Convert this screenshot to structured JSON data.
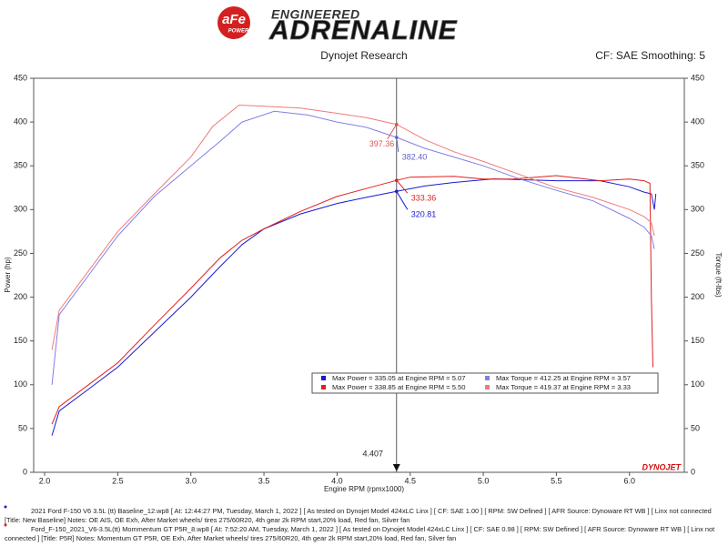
{
  "header": {
    "brand": "aFe",
    "brand_sub": "POWER",
    "tagline": "ENGINEERED",
    "title": "ADRENALINE"
  },
  "chart_data": {
    "type": "line",
    "title": "Dynojet Research",
    "subtitle": "CF: SAE Smoothing: 5",
    "x_label": "Engine RPM (rpmx1000)",
    "y_label": "Power (hp)",
    "y2_label": "Torque (ft-lbs)",
    "watermark": "DYNOJET",
    "xlim": [
      1.925,
      6.375
    ],
    "ylim": [
      0,
      450
    ],
    "y2lim": [
      0,
      450
    ],
    "xticks": [
      {
        "value": 2,
        "label": "2.0"
      },
      2.5,
      {
        "value": 3,
        "label": "3.0"
      },
      3.5,
      {
        "value": 4,
        "label": "4.0"
      },
      4.5,
      {
        "value": 5,
        "label": "5.0"
      },
      5.5,
      {
        "value": 6,
        "label": "6.0"
      }
    ],
    "yticks": [
      0,
      50,
      100,
      150,
      200,
      250,
      300,
      350,
      400,
      450
    ],
    "y2ticks": [
      0,
      50,
      100,
      150,
      200,
      250,
      300,
      350,
      400,
      450
    ],
    "grid": false,
    "legend": "bottom-right",
    "cursor_x": 4.407,
    "series": [
      {
        "name": "Max Power = 335.05 at Engine RPM = 5.07",
        "color": "#1a1ad0",
        "x": [
          2.05,
          2.1,
          2.3,
          2.5,
          2.75,
          3.0,
          3.2,
          3.35,
          3.5,
          3.75,
          4.0,
          4.2,
          4.407,
          4.6,
          4.8,
          5.07,
          5.3,
          5.5,
          5.8,
          6.0,
          6.1,
          6.15,
          6.17,
          6.18
        ],
        "values": [
          42,
          70,
          95,
          120,
          160,
          200,
          235,
          260,
          278,
          295,
          307,
          314,
          320.81,
          327,
          331,
          335.05,
          334,
          333,
          333,
          326,
          320,
          318,
          300,
          318
        ]
      },
      {
        "name": "Max Power = 338.85 at Engine RPM = 5.50",
        "color": "#e02020",
        "x": [
          2.05,
          2.1,
          2.3,
          2.5,
          2.75,
          3.0,
          3.2,
          3.35,
          3.5,
          3.75,
          4.0,
          4.2,
          4.407,
          4.5,
          4.8,
          5.0,
          5.2,
          5.5,
          5.8,
          6.0,
          6.1,
          6.14,
          6.15,
          6.16
        ],
        "values": [
          55,
          75,
          100,
          125,
          168,
          210,
          245,
          265,
          278,
          298,
          315,
          324,
          333.36,
          337,
          338,
          335,
          335,
          338.85,
          333,
          335,
          333,
          330,
          200,
          120
        ]
      },
      {
        "name": "Max Torque = 412.25 at Engine RPM = 3.57",
        "color": "#8080e6",
        "x": [
          2.05,
          2.1,
          2.3,
          2.5,
          2.75,
          3.0,
          3.2,
          3.35,
          3.57,
          3.8,
          4.0,
          4.2,
          4.407,
          4.6,
          4.8,
          5.0,
          5.25,
          5.5,
          5.75,
          6.0,
          6.1,
          6.15,
          6.17
        ],
        "values": [
          100,
          180,
          225,
          270,
          315,
          350,
          378,
          400,
          412.25,
          408,
          400,
          394,
          382.4,
          370,
          360,
          350,
          335,
          322,
          310,
          290,
          280,
          270,
          255
        ]
      },
      {
        "name": "Max Torque = 419.37 at Engine RPM = 3.33",
        "color": "#f07a7a",
        "x": [
          2.05,
          2.1,
          2.3,
          2.5,
          2.75,
          3.0,
          3.15,
          3.33,
          3.5,
          3.75,
          4.0,
          4.2,
          4.407,
          4.6,
          4.8,
          5.0,
          5.25,
          5.5,
          5.75,
          6.0,
          6.1,
          6.15,
          6.17
        ],
        "values": [
          140,
          185,
          230,
          275,
          318,
          360,
          395,
          419.37,
          418,
          416,
          410,
          405,
          397.36,
          380,
          366,
          355,
          340,
          325,
          314,
          300,
          292,
          285,
          270
        ]
      }
    ],
    "annotations": [
      {
        "label": "397.36",
        "x": 4.407,
        "y": 397.36,
        "color": "#e05050"
      },
      {
        "label": "382.40",
        "x": 4.407,
        "y": 382.4,
        "color": "#6060d0"
      },
      {
        "label": "333.36",
        "x": 4.407,
        "y": 333.36,
        "color": "#e02020"
      },
      {
        "label": "320.81",
        "x": 4.407,
        "y": 320.81,
        "color": "#1a1ad0"
      }
    ]
  },
  "footer": [
    "2021 Ford F-150 V6 3.5L (tt) Baseline_12.wp8 [ At: 12:44:27 PM, Tuesday, March 1, 2022 ] [ As tested on Dynojet Model 424xLC Linx ] [ CF: SAE 1.00 ] [ RPM: SW Defined ] [ AFR Source: Dynoware RT WB ] [ Linx not connected",
    "[Title: New Baseline]  Notes: OE AIS, OE Exh, After Market wheels/ tires 275/60R20, 4th gear 2k RPM start,20% load, Red fan, Silver fan",
    "Ford_F-150_2021_V6-3.5L(tt) Mommentum GT P5R_8.wp8 [ At: 7:52:20 AM, Tuesday, March 1, 2022 ] [ As tested on Dynojet Model 424xLC Linx ] [ CF: SAE 0.98 ] [ RPM: SW Defined ] [ AFR Source: Dynoware RT WB ] [ Linx not",
    "connected ] [Title: P5R]  Notes: Momentum GT  P5R, OE Exh, After Market wheels/ tires 275/60R20, 4th gear 2k RPM start,20% load, Red fan, Silver fan"
  ]
}
